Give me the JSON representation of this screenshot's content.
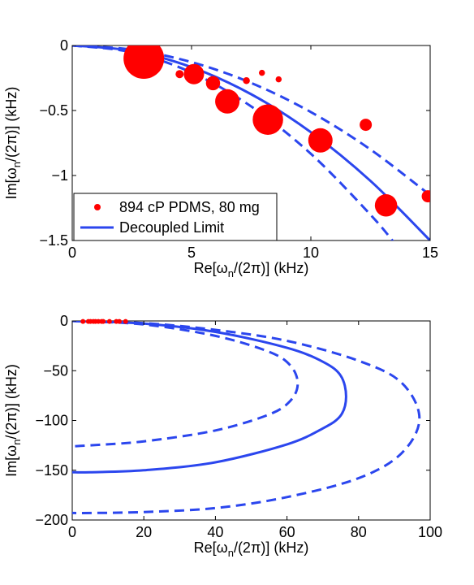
{
  "chart_data": [
    {
      "type": "scatter",
      "title": "",
      "xlabel": {
        "pre": "Re[ω",
        "sub": "n",
        "post": "/(2π)] (kHz)"
      },
      "ylabel": {
        "pre": "Im[ω",
        "sub": "n",
        "post": "/(2π)] (kHz)"
      },
      "xlim": [
        0,
        15
      ],
      "ylim": [
        -1.5,
        0
      ],
      "xticks": [
        0,
        5,
        10,
        15
      ],
      "xtick_labels": [
        "0",
        "5",
        "10",
        "15"
      ],
      "yticks": [
        0,
        -0.5,
        -1,
        -1.5
      ],
      "ytick_labels": [
        "0",
        "−0.5",
        "−1",
        "−1.5"
      ],
      "legend": {
        "placement": "bottom-left",
        "entries": [
          "894 cP PDMS,  80 mg",
          "Decoupled Limit"
        ]
      },
      "series": [
        {
          "name": "894 cP PDMS,  80 mg",
          "kind": "points",
          "color": "#ff0000",
          "points": [
            {
              "x": 3.0,
              "y": -0.1,
              "size": 1.0
            },
            {
              "x": 4.5,
              "y": -0.22,
              "size": 0.2
            },
            {
              "x": 5.1,
              "y": -0.22,
              "size": 0.5
            },
            {
              "x": 5.9,
              "y": -0.29,
              "size": 0.35
            },
            {
              "x": 6.5,
              "y": -0.43,
              "size": 0.6
            },
            {
              "x": 7.3,
              "y": -0.27,
              "size": 0.17
            },
            {
              "x": 7.95,
              "y": -0.21,
              "size": 0.15
            },
            {
              "x": 8.2,
              "y": -0.57,
              "size": 0.75
            },
            {
              "x": 8.65,
              "y": -0.26,
              "size": 0.15
            },
            {
              "x": 10.4,
              "y": -0.73,
              "size": 0.6
            },
            {
              "x": 12.3,
              "y": -0.61,
              "size": 0.3
            },
            {
              "x": 13.15,
              "y": -1.23,
              "size": 0.55
            },
            {
              "x": 14.9,
              "y": -1.16,
              "size": 0.3
            }
          ]
        },
        {
          "name": "Decoupled Limit",
          "kind": "curve",
          "color": "#2b46ee",
          "style": "solid",
          "x": [
            0,
            2.5,
            5,
            7.5,
            10,
            12.5,
            15
          ],
          "y": [
            0,
            -0.041,
            -0.167,
            -0.375,
            -0.667,
            -1.042,
            -1.5
          ]
        },
        {
          "kind": "curve",
          "color": "#2b46ee",
          "style": "dashed",
          "x": [
            0,
            2.5,
            5,
            7.5,
            10,
            12.5,
            15
          ],
          "y": [
            0,
            -0.032,
            -0.128,
            -0.288,
            -0.512,
            -0.8,
            -1.152
          ]
        },
        {
          "kind": "curve",
          "color": "#2b46ee",
          "style": "dashed",
          "x": [
            0,
            2.5,
            5,
            7.5,
            10,
            12.5,
            13.6
          ],
          "y": [
            0,
            -0.052,
            -0.208,
            -0.469,
            -0.833,
            -1.302,
            -1.541
          ]
        }
      ]
    },
    {
      "type": "scatter",
      "title": "",
      "xlabel": {
        "pre": "Re[ω",
        "sub": "n",
        "post": "/(2π)] (kHz)"
      },
      "ylabel": {
        "pre": "Im[ω",
        "sub": "n",
        "post": "/(2π)] (kHz)"
      },
      "xlim": [
        0,
        100
      ],
      "ylim": [
        -200,
        0
      ],
      "xticks": [
        0,
        20,
        40,
        60,
        80,
        100
      ],
      "xtick_labels": [
        "0",
        "20",
        "40",
        "60",
        "80",
        "100"
      ],
      "yticks": [
        0,
        -50,
        -100,
        -150,
        -200
      ],
      "ytick_labels": [
        "0",
        "−50",
        "−100",
        "−150",
        "−200"
      ],
      "series": [
        {
          "kind": "points",
          "color": "#ff0000",
          "points": [
            {
              "x": 3.0,
              "y": -0.5,
              "size": 0.3
            },
            {
              "x": 4.5,
              "y": -0.5,
              "size": 0.3
            },
            {
              "x": 5.1,
              "y": -0.5,
              "size": 0.3
            },
            {
              "x": 5.9,
              "y": -0.5,
              "size": 0.3
            },
            {
              "x": 6.5,
              "y": -0.5,
              "size": 0.3
            },
            {
              "x": 7.3,
              "y": -0.5,
              "size": 0.3
            },
            {
              "x": 8.2,
              "y": -0.5,
              "size": 0.3
            },
            {
              "x": 8.65,
              "y": -0.5,
              "size": 0.3
            },
            {
              "x": 10.4,
              "y": -0.5,
              "size": 0.3
            },
            {
              "x": 12.3,
              "y": -0.5,
              "size": 0.3
            },
            {
              "x": 13.15,
              "y": -0.5,
              "size": 0.3
            },
            {
              "x": 14.9,
              "y": -0.5,
              "size": 0.3
            }
          ]
        },
        {
          "kind": "curve",
          "color": "#2b46ee",
          "style": "solid",
          "x": [
            0,
            20,
            40,
            60,
            70,
            75,
            76.5,
            75,
            70,
            60,
            40,
            20,
            5,
            0
          ],
          "y": [
            0,
            -2.7,
            -11,
            -27,
            -41,
            -55,
            -76,
            -95,
            -108,
            -124,
            -142,
            -150,
            -152,
            -152
          ]
        },
        {
          "kind": "curve",
          "color": "#2b46ee",
          "style": "dashed",
          "x": [
            0,
            20,
            40,
            55,
            61,
            63,
            61,
            55,
            40,
            20,
            5,
            0
          ],
          "y": [
            0,
            -3.5,
            -15,
            -31,
            -45,
            -63,
            -80,
            -94,
            -110,
            -121,
            -125,
            -126
          ]
        },
        {
          "kind": "curve",
          "color": "#2b46ee",
          "style": "dashed",
          "x": [
            0,
            20,
            40,
            60,
            80,
            92,
            97,
            92,
            80,
            60,
            40,
            20,
            5,
            0
          ],
          "y": [
            0,
            -2.2,
            -9,
            -20,
            -40,
            -62,
            -98,
            -133,
            -158,
            -177,
            -188,
            -192,
            -193,
            -193
          ]
        }
      ]
    }
  ]
}
